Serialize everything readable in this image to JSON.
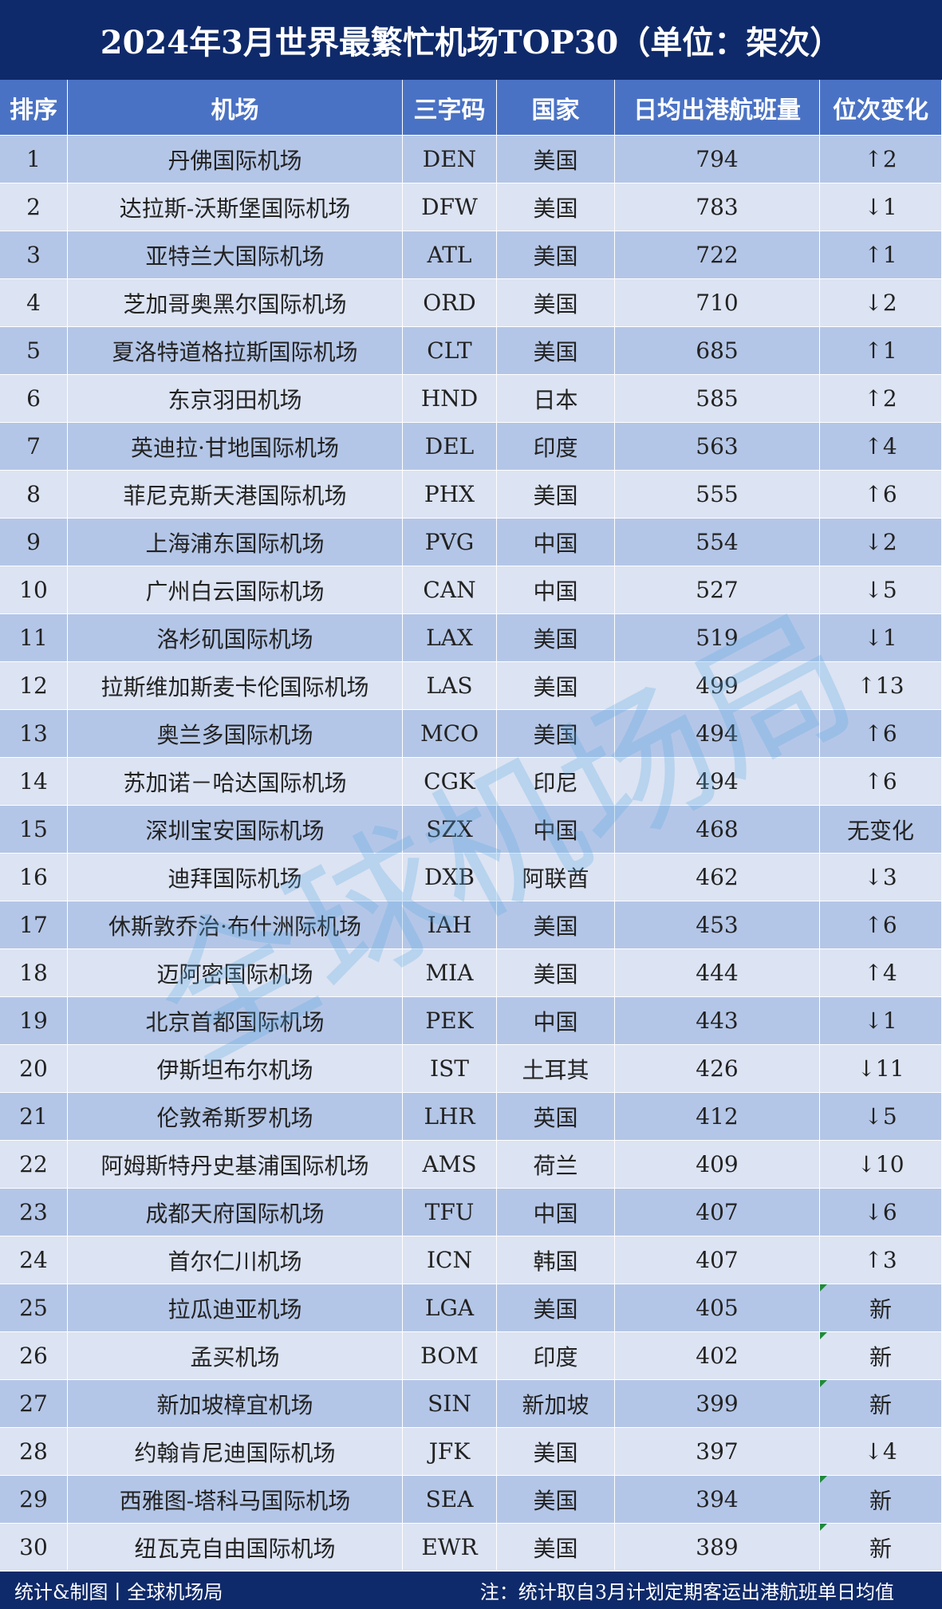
{
  "header": {
    "title": "2024年3月世界最繁忙机场TOP30（单位：架次）"
  },
  "table": {
    "columns": [
      "排序",
      "机场",
      "三字码",
      "国家",
      "日均出港航班量",
      "位次变化"
    ],
    "rows": [
      [
        1,
        "丹佛国际机场",
        "DEN",
        "美国",
        794,
        "↑2"
      ],
      [
        2,
        "达拉斯-沃斯堡国际机场",
        "DFW",
        "美国",
        783,
        "↓1"
      ],
      [
        3,
        "亚特兰大国际机场",
        "ATL",
        "美国",
        722,
        "↑1"
      ],
      [
        4,
        "芝加哥奥黑尔国际机场",
        "ORD",
        "美国",
        710,
        "↓2"
      ],
      [
        5,
        "夏洛特道格拉斯国际机场",
        "CLT",
        "美国",
        685,
        "↑1"
      ],
      [
        6,
        "东京羽田机场",
        "HND",
        "日本",
        585,
        "↑2"
      ],
      [
        7,
        "英迪拉·甘地国际机场",
        "DEL",
        "印度",
        563,
        "↑4"
      ],
      [
        8,
        "菲尼克斯天港国际机场",
        "PHX",
        "美国",
        555,
        "↑6"
      ],
      [
        9,
        "上海浦东国际机场",
        "PVG",
        "中国",
        554,
        "↓2"
      ],
      [
        10,
        "广州白云国际机场",
        "CAN",
        "中国",
        527,
        "↓5"
      ],
      [
        11,
        "洛杉矶国际机场",
        "LAX",
        "美国",
        519,
        "↓1"
      ],
      [
        12,
        "拉斯维加斯麦卡伦国际机场",
        "LAS",
        "美国",
        499,
        "↑13"
      ],
      [
        13,
        "奥兰多国际机场",
        "MCO",
        "美国",
        494,
        "↑6"
      ],
      [
        14,
        "苏加诺－哈达国际机场",
        "CGK",
        "印尼",
        494,
        "↑6"
      ],
      [
        15,
        "深圳宝安国际机场",
        "SZX",
        "中国",
        468,
        "无变化"
      ],
      [
        16,
        "迪拜国际机场",
        "DXB",
        "阿联酋",
        462,
        "↓3"
      ],
      [
        17,
        "休斯敦乔治·布什洲际机场",
        "IAH",
        "美国",
        453,
        "↑6"
      ],
      [
        18,
        "迈阿密国际机场",
        "MIA",
        "美国",
        444,
        "↑4"
      ],
      [
        19,
        "北京首都国际机场",
        "PEK",
        "中国",
        443,
        "↓1"
      ],
      [
        20,
        "伊斯坦布尔机场",
        "IST",
        "土耳其",
        426,
        "↓11"
      ],
      [
        21,
        "伦敦希斯罗机场",
        "LHR",
        "英国",
        412,
        "↓5"
      ],
      [
        22,
        "阿姆斯特丹史基浦国际机场",
        "AMS",
        "荷兰",
        409,
        "↓10"
      ],
      [
        23,
        "成都天府国际机场",
        "TFU",
        "中国",
        407,
        "↓6"
      ],
      [
        24,
        "首尔仁川机场",
        "ICN",
        "韩国",
        407,
        "↑3"
      ],
      [
        25,
        "拉瓜迪亚机场",
        "LGA",
        "美国",
        405,
        "新"
      ],
      [
        26,
        "孟买机场",
        "BOM",
        "印度",
        402,
        "新"
      ],
      [
        27,
        "新加坡樟宜机场",
        "SIN",
        "新加坡",
        399,
        "新"
      ],
      [
        28,
        "约翰肯尼迪国际机场",
        "JFK",
        "美国",
        397,
        "↓4"
      ],
      [
        29,
        "西雅图-塔科马国际机场",
        "SEA",
        "美国",
        394,
        "新"
      ],
      [
        30,
        "纽瓦克自由国际机场",
        "EWR",
        "美国",
        389,
        "新"
      ]
    ]
  },
  "watermark": "全球机场局",
  "footer": {
    "left": "统计&制图丨全球机场局",
    "right": "注：统计取自3月计划定期客运出港航班单日均值"
  }
}
